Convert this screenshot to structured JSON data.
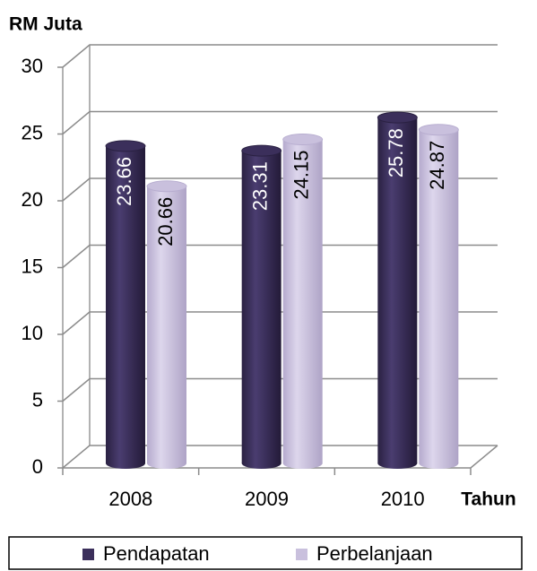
{
  "chart_data": {
    "type": "bar3d",
    "y_label": "RM Juta",
    "x_label": "Tahun",
    "categories": [
      "2008",
      "2009",
      "2010"
    ],
    "series": [
      {
        "name": "Pendapatan",
        "color": "#3b2f5b",
        "values": [
          23.66,
          23.31,
          25.78
        ]
      },
      {
        "name": "Perbelanjaan",
        "color": "#c9c0dd",
        "values": [
          20.66,
          24.15,
          24.87
        ]
      }
    ],
    "ylim": [
      0,
      30
    ],
    "yticks": [
      0,
      5,
      10,
      15,
      20,
      25,
      30
    ],
    "grid": true,
    "legend": "bottom"
  }
}
